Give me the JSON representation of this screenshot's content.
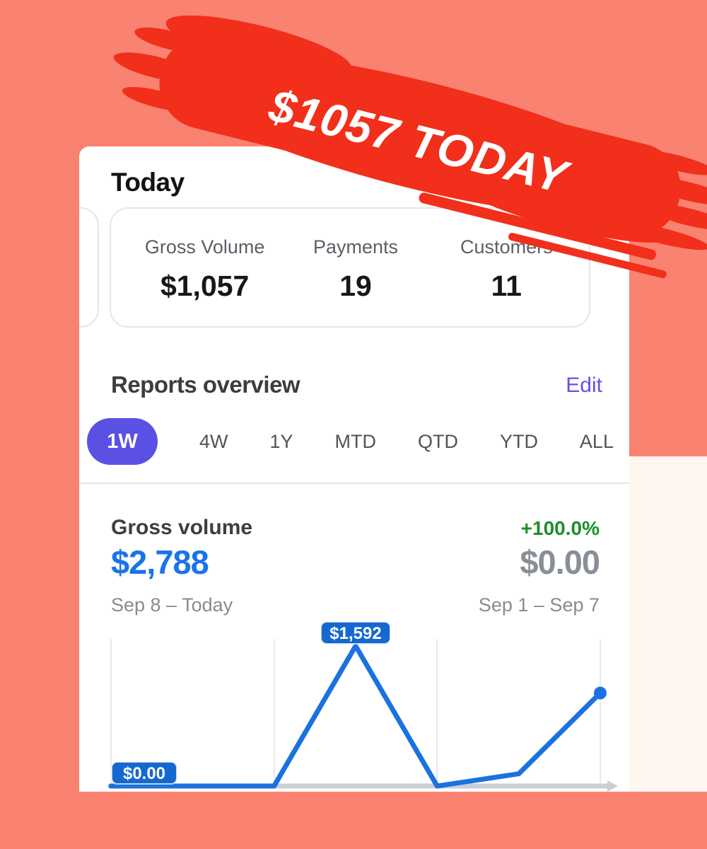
{
  "overlay": {
    "banner_text": "$1057 TODAY"
  },
  "colors": {
    "background": "#FA8271",
    "brush_red": "#F12F1A",
    "accent_purple": "#5B50E4",
    "line_blue": "#1B72DF",
    "badge_blue": "#1568D0",
    "current_blue": "#1A73E8",
    "positive_green": "#1C8F28",
    "cream_band": "#FDF7EF"
  },
  "today_section": {
    "title": "Today",
    "stats": [
      {
        "label": "Gross Volume",
        "value": "$1,057"
      },
      {
        "label": "Payments",
        "value": "19"
      },
      {
        "label": "Customers",
        "value": "11"
      }
    ]
  },
  "reports": {
    "title": "Reports overview",
    "edit_label": "Edit",
    "tabs": [
      {
        "label": "1W",
        "selected": true
      },
      {
        "label": "4W",
        "selected": false
      },
      {
        "label": "1Y",
        "selected": false
      },
      {
        "label": "MTD",
        "selected": false
      },
      {
        "label": "QTD",
        "selected": false
      },
      {
        "label": "YTD",
        "selected": false
      },
      {
        "label": "ALL",
        "selected": false
      }
    ]
  },
  "gross_volume": {
    "title": "Gross volume",
    "change": "+100.0%",
    "current_value": "$2,788",
    "previous_value": "$0.00",
    "current_period": "Sep 8 – Today",
    "previous_period": "Sep 1 – Sep 7"
  },
  "chart_data": {
    "type": "line",
    "title": "Gross volume",
    "series": [
      {
        "name": "Sep 8 – Today",
        "values": [
          0,
          0,
          0,
          1592,
          0,
          139,
          1057
        ]
      },
      {
        "name": "Sep 1 – Sep 7",
        "values": [
          0,
          0,
          0,
          0,
          0,
          0,
          0
        ]
      }
    ],
    "ylim": [
      0,
      1592
    ],
    "grid": "vertical-only",
    "annotations": [
      {
        "label": "$0.00",
        "point_index": 0,
        "series": "Sep 1 – Sep 7"
      },
      {
        "label": "$1,592",
        "point_index": 3,
        "series": "Sep 8 – Today"
      }
    ]
  }
}
